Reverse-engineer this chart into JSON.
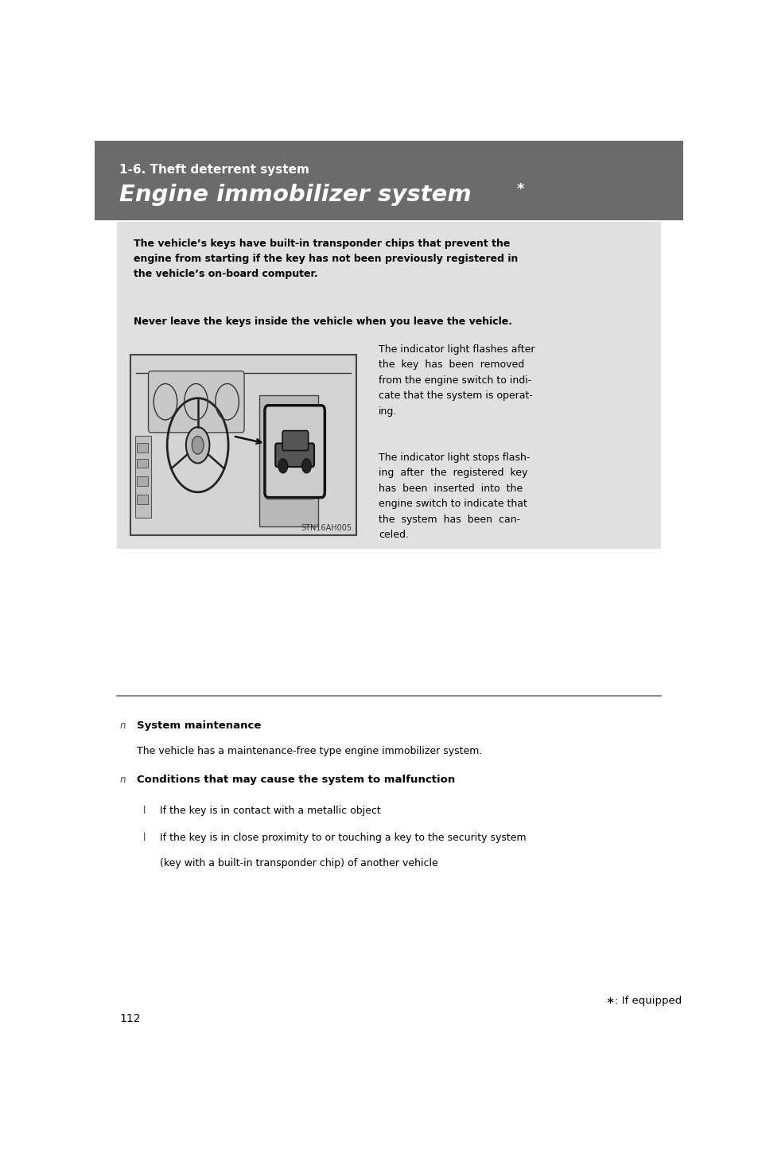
{
  "page_bg": "#ffffff",
  "header_bg": "#6b6b6b",
  "header_subtitle": "1-6. Theft deterrent system",
  "header_title": "Engine immobilizer system",
  "header_star": "*",
  "info_box_bg": "#e0e0e0",
  "bold_text_1": "The vehicle’s keys have built-in transponder chips that prevent the\nengine from starting if the key has not been previously registered in\nthe vehicle’s on-board computer.",
  "bold_text_2": "Never leave the keys inside the vehicle when you leave the vehicle.",
  "indicator_text_1": "The indicator light flashes after\nthe  key  has  been  removed\nfrom the engine switch to indi-\ncate that the system is operat-\ning.",
  "indicator_text_2": "The indicator light stops flash-\ning  after  the  registered  key\nhas  been  inserted  into  the\nengine switch to indicate that\nthe  system  has  been  can-\nceled.",
  "image_caption": "STN16AH005",
  "section1_label": "System maintenance",
  "section1_body": "The vehicle has a maintenance-free type engine immobilizer system.",
  "section2_label": "Conditions that may cause the system to malfunction",
  "bullet1": "If the key is in contact with a metallic object",
  "bullet2_line1": "If the key is in close proximity to or touching a key to the security system",
  "bullet2_line2": "(key with a built-in transponder chip) of another vehicle",
  "footnote_star": "∗: If equipped",
  "page_number": "112",
  "text_color": "#000000"
}
